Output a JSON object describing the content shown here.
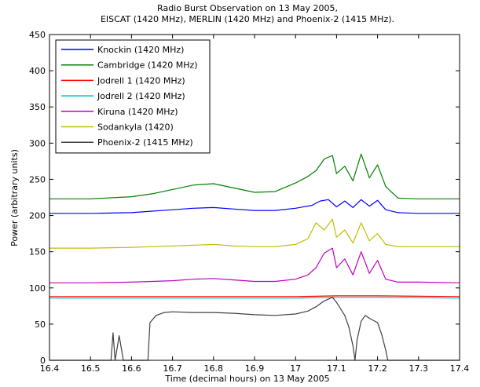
{
  "chart_data": {
    "type": "line",
    "title": "Radio Burst Observation on 13 May 2005,",
    "subtitle": "EISCAT (1420 MHz), MERLIN (1420 MHz) and Phoenix-2 (1415 MHz).",
    "xlabel": "Time (decimal hours) on 13 May 2005",
    "ylabel": "Power (arbitrary units)",
    "xlim": [
      16.4,
      17.4
    ],
    "ylim": [
      0,
      450
    ],
    "xticks": [
      "16.4",
      "16.5",
      "16.6",
      "16.7",
      "16.8",
      "16.9",
      "17",
      "17.1",
      "17.2",
      "17.3",
      "17.4"
    ],
    "yticks": [
      "0",
      "50",
      "100",
      "150",
      "200",
      "250",
      "300",
      "350",
      "400",
      "450"
    ],
    "grid": false,
    "legend_position": "top-left",
    "series": [
      {
        "name": "Knockin (1420 MHz)",
        "color": "#0000ff",
        "x": [
          16.4,
          16.5,
          16.6,
          16.65,
          16.7,
          16.75,
          16.8,
          16.85,
          16.9,
          16.95,
          17.0,
          17.04,
          17.06,
          17.08,
          17.1,
          17.12,
          17.14,
          17.16,
          17.18,
          17.2,
          17.22,
          17.25,
          17.3,
          17.4
        ],
        "y": [
          203,
          203,
          204,
          206,
          208,
          210,
          211,
          209,
          207,
          207,
          210,
          214,
          220,
          222,
          212,
          220,
          211,
          222,
          213,
          221,
          208,
          204,
          203,
          203
        ]
      },
      {
        "name": "Cambridge (1420 MHz)",
        "color": "#008000",
        "x": [
          16.4,
          16.5,
          16.6,
          16.65,
          16.7,
          16.75,
          16.8,
          16.85,
          16.9,
          16.95,
          17.0,
          17.03,
          17.05,
          17.07,
          17.09,
          17.1,
          17.12,
          17.14,
          17.16,
          17.18,
          17.2,
          17.22,
          17.25,
          17.3,
          17.4
        ],
        "y": [
          223,
          223,
          226,
          230,
          236,
          242,
          244,
          238,
          232,
          233,
          245,
          254,
          262,
          278,
          283,
          258,
          268,
          248,
          285,
          252,
          270,
          240,
          224,
          223,
          223
        ]
      },
      {
        "name": "Jodrell 1 (1420 MHz)",
        "color": "#ff0000",
        "x": [
          16.4,
          16.6,
          16.8,
          17.0,
          17.1,
          17.2,
          17.4
        ],
        "y": [
          88,
          88,
          88,
          88,
          89,
          89,
          88
        ]
      },
      {
        "name": "Jodrell 2 (1420 MHz)",
        "color": "#00bfbf",
        "x": [
          16.4,
          16.6,
          16.8,
          17.0,
          17.1,
          17.2,
          17.4
        ],
        "y": [
          86,
          86,
          86,
          86,
          87,
          87,
          86
        ]
      },
      {
        "name": "Kiruna (1420 MHz)",
        "color": "#bf00bf",
        "x": [
          16.4,
          16.5,
          16.6,
          16.65,
          16.7,
          16.75,
          16.8,
          16.85,
          16.9,
          16.95,
          17.0,
          17.03,
          17.05,
          17.07,
          17.09,
          17.1,
          17.12,
          17.14,
          17.16,
          17.18,
          17.2,
          17.22,
          17.25,
          17.3,
          17.4
        ],
        "y": [
          107,
          107,
          108,
          109,
          110,
          112,
          113,
          111,
          109,
          109,
          112,
          118,
          128,
          148,
          155,
          128,
          140,
          118,
          150,
          120,
          138,
          112,
          108,
          108,
          107
        ]
      },
      {
        "name": "Sodankyla (1420)",
        "color": "#bfbf00",
        "x": [
          16.4,
          16.5,
          16.6,
          16.65,
          16.7,
          16.75,
          16.8,
          16.85,
          16.9,
          16.95,
          17.0,
          17.03,
          17.05,
          17.07,
          17.09,
          17.1,
          17.12,
          17.14,
          17.16,
          17.18,
          17.2,
          17.22,
          17.25,
          17.3,
          17.4
        ],
        "y": [
          155,
          155,
          156,
          157,
          158,
          159,
          160,
          158,
          157,
          157,
          160,
          168,
          190,
          180,
          195,
          170,
          180,
          162,
          190,
          165,
          175,
          160,
          157,
          157,
          157
        ]
      },
      {
        "name": "Phoenix-2 (1415 MHz)",
        "color": "#404040",
        "x": [
          16.4,
          16.55,
          16.555,
          16.56,
          16.57,
          16.58,
          16.6,
          16.64,
          16.645,
          16.66,
          16.68,
          16.7,
          16.75,
          16.8,
          16.85,
          16.9,
          16.95,
          17.0,
          17.03,
          17.05,
          17.07,
          17.09,
          17.1,
          17.12,
          17.13,
          17.14,
          17.145,
          17.15,
          17.16,
          17.17,
          17.18,
          17.2,
          17.21,
          17.22,
          17.225,
          17.4
        ],
        "y": [
          0,
          0,
          38,
          0,
          34,
          0,
          0,
          0,
          52,
          62,
          66,
          67,
          66,
          66,
          65,
          63,
          62,
          64,
          68,
          74,
          82,
          87,
          80,
          62,
          46,
          20,
          0,
          28,
          54,
          62,
          58,
          52,
          36,
          14,
          0,
          0
        ]
      }
    ],
    "annotations": []
  }
}
